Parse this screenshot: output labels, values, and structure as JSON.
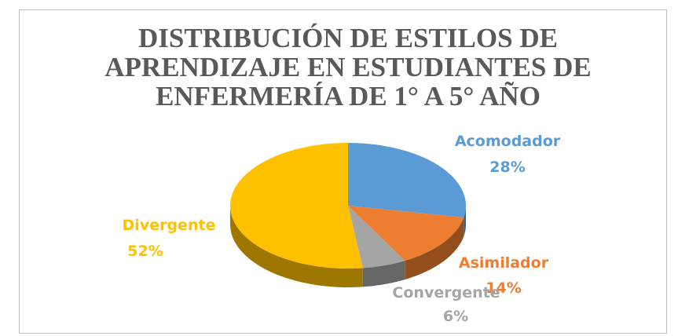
{
  "chart_data": {
    "type": "pie",
    "title": [
      "DISTRIBUCIÓN DE ESTILOS DE",
      "APRENDIZAJE EN ESTUDIANTES DE",
      "ENFERMERÍA DE 1° A 5° AÑO"
    ],
    "categories": [
      "Acomodador",
      "Asimilador",
      "Convergente",
      "Divergente"
    ],
    "values": [
      28,
      14,
      6,
      52
    ],
    "value_labels": [
      "28%",
      "14%",
      "6%",
      "52%"
    ],
    "colors": [
      "#5b9bd5",
      "#ed7d31",
      "#a5a5a5",
      "#ffc000"
    ]
  }
}
